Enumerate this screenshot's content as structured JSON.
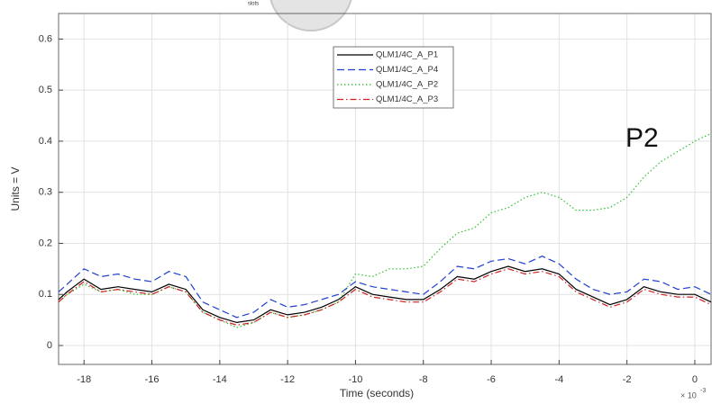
{
  "chart_data": {
    "type": "line",
    "header_text": "slots",
    "ylabel": "Units = V",
    "xlabel": "Time (seconds)",
    "x_multiplier": {
      "base": "× 10",
      "exponent": "-3"
    },
    "annotation": "P2",
    "grid": true,
    "legend": "top",
    "xlim": [
      -18.75,
      0.48
    ],
    "ylim": [
      -0.037,
      0.65
    ],
    "xticks": [
      -18,
      -16,
      -14,
      -12,
      -10,
      -8,
      -6,
      -4,
      -2,
      0
    ],
    "yticks": [
      0,
      0.1,
      0.2,
      0.3,
      0.4,
      0.5,
      0.6
    ],
    "x": [
      -18.75,
      -18.5,
      -18,
      -17.5,
      -17,
      -16.5,
      -16,
      -15.5,
      -15,
      -14.5,
      -14,
      -13.5,
      -13,
      -12.5,
      -12,
      -11.5,
      -11,
      -10.5,
      -10,
      -9.5,
      -9,
      -8.5,
      -8,
      -7.5,
      -7,
      -6.5,
      -6,
      -5.5,
      -5,
      -4.5,
      -4,
      -3.5,
      -3,
      -2.5,
      -2,
      -1.5,
      -1,
      -0.5,
      0,
      0.48
    ],
    "series": [
      {
        "name": "QLM1/4C_A_P1",
        "color": "#000000",
        "dash": "",
        "values": [
          0.09,
          0.105,
          0.13,
          0.11,
          0.115,
          0.11,
          0.105,
          0.12,
          0.11,
          0.07,
          0.055,
          0.045,
          0.05,
          0.07,
          0.06,
          0.065,
          0.075,
          0.09,
          0.115,
          0.1,
          0.095,
          0.09,
          0.09,
          0.11,
          0.135,
          0.13,
          0.145,
          0.155,
          0.145,
          0.15,
          0.14,
          0.11,
          0.095,
          0.08,
          0.09,
          0.115,
          0.105,
          0.1,
          0.1,
          0.085
        ]
      },
      {
        "name": "QLM1/4C_A_P4",
        "color": "#1f3fd0",
        "dash": "8 4",
        "values": [
          0.105,
          0.12,
          0.15,
          0.135,
          0.14,
          0.13,
          0.125,
          0.145,
          0.135,
          0.085,
          0.07,
          0.055,
          0.065,
          0.09,
          0.075,
          0.08,
          0.09,
          0.1,
          0.125,
          0.115,
          0.11,
          0.105,
          0.1,
          0.125,
          0.155,
          0.15,
          0.165,
          0.17,
          0.16,
          0.175,
          0.16,
          0.13,
          0.11,
          0.1,
          0.105,
          0.13,
          0.125,
          0.11,
          0.115,
          0.1
        ]
      },
      {
        "name": "QLM1/4C_A_P2",
        "color": "#2fbf2f",
        "dash": "1.5 2.5",
        "values": [
          0.085,
          0.1,
          0.12,
          0.105,
          0.11,
          0.1,
          0.1,
          0.115,
          0.105,
          0.065,
          0.05,
          0.035,
          0.045,
          0.065,
          0.055,
          0.06,
          0.07,
          0.085,
          0.14,
          0.135,
          0.15,
          0.15,
          0.155,
          0.19,
          0.22,
          0.23,
          0.26,
          0.27,
          0.29,
          0.3,
          0.29,
          0.265,
          0.265,
          0.27,
          0.29,
          0.33,
          0.36,
          0.38,
          0.4,
          0.415
        ]
      },
      {
        "name": "QLM1/4C_A_P3",
        "color": "#d02020",
        "dash": "7 3 1.5 3",
        "values": [
          0.085,
          0.1,
          0.125,
          0.105,
          0.11,
          0.105,
          0.1,
          0.115,
          0.105,
          0.065,
          0.05,
          0.04,
          0.045,
          0.065,
          0.055,
          0.06,
          0.07,
          0.085,
          0.11,
          0.095,
          0.09,
          0.085,
          0.085,
          0.105,
          0.13,
          0.125,
          0.14,
          0.15,
          0.14,
          0.145,
          0.135,
          0.105,
          0.09,
          0.075,
          0.085,
          0.11,
          0.1,
          0.095,
          0.095,
          0.08
        ]
      }
    ]
  }
}
